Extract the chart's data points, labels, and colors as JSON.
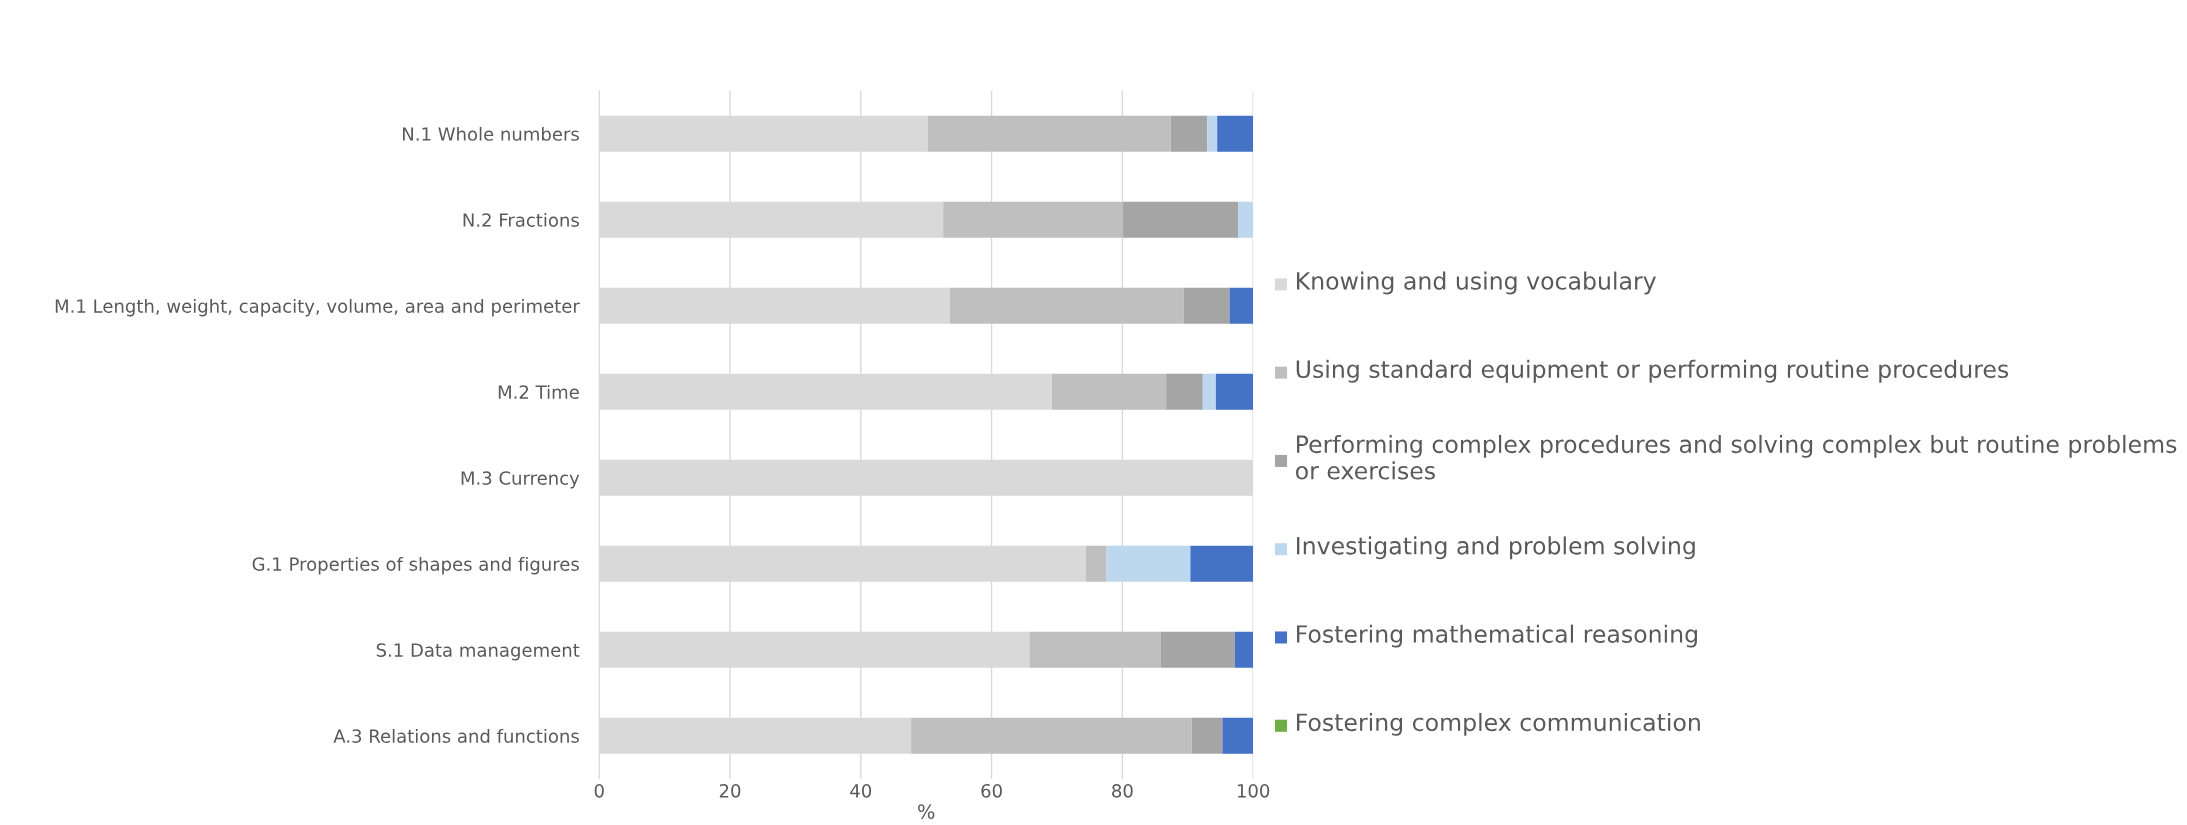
{
  "chart_data": {
    "type": "bar",
    "orientation": "horizontal",
    "stacked": true,
    "xlabel": "%",
    "categories": [
      "N.1 Whole numbers",
      "N.2 Fractions",
      "M.1 Length, weight, capacity, volume, area and perimeter",
      "M.2 Time",
      "M.3 Currency",
      "G.1 Properties of shapes and figures",
      "S.1 Data management",
      "A.3 Relations and functions"
    ],
    "series": [
      {
        "name": "Knowing and using vocabulary",
        "color": "#d9d9d9",
        "values": [
          50.2,
          52.6,
          53.6,
          69.2,
          100,
          74.4,
          65.8,
          47.7
        ]
      },
      {
        "name": "Using standard equipment or performing routine procedures",
        "color": "#bfbfbf",
        "values": [
          37.2,
          27.5,
          35.8,
          17.5,
          0,
          3.2,
          20.1,
          42.9
        ]
      },
      {
        "name": "Performing complex procedures and solving complex but routine problems or exercises",
        "color": "#a5a5a5",
        "values": [
          5.6,
          17.6,
          7.0,
          5.6,
          0,
          0,
          11.3,
          4.7
        ]
      },
      {
        "name": "Investigating and problem solving",
        "color": "#bdd7ee",
        "values": [
          1.5,
          2.3,
          0,
          2.0,
          0,
          12.8,
          0,
          0
        ]
      },
      {
        "name": "Fostering mathematical reasoning",
        "color": "#4472c4",
        "values": [
          5.5,
          0,
          3.6,
          5.7,
          0,
          9.6,
          2.8,
          4.7
        ]
      },
      {
        "name": "Fostering complex communication",
        "color": "#70ad47",
        "values": [
          0,
          0,
          0,
          0,
          0,
          0,
          0,
          0
        ]
      }
    ],
    "xlim": [
      0,
      100
    ],
    "xticks": [
      0,
      20,
      40,
      60,
      80,
      100
    ],
    "grid": "x",
    "legend": "right"
  }
}
